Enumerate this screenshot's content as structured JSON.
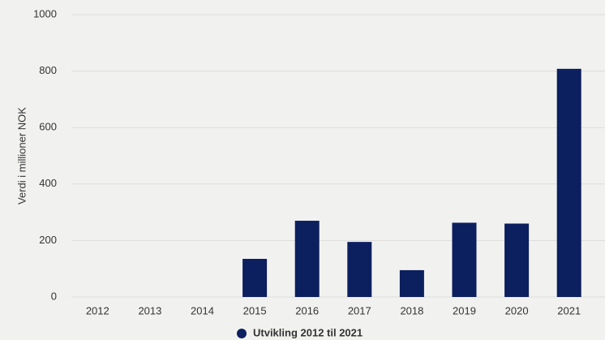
{
  "chart_data": {
    "type": "bar",
    "y_label": "Verdi i millioner NOK",
    "categories": [
      "2012",
      "2013",
      "2014",
      "2015",
      "2016",
      "2017",
      "2018",
      "2019",
      "2020",
      "2021"
    ],
    "series": [
      {
        "name": "Utvikling 2012 til 2021",
        "color": "#0c1f5e",
        "values": [
          0,
          0,
          0,
          135,
          270,
          195,
          95,
          263,
          260,
          808
        ]
      }
    ],
    "ylim": [
      0,
      1000
    ],
    "yticks": [
      0,
      200,
      400,
      600,
      800,
      1000
    ],
    "grid": true
  }
}
